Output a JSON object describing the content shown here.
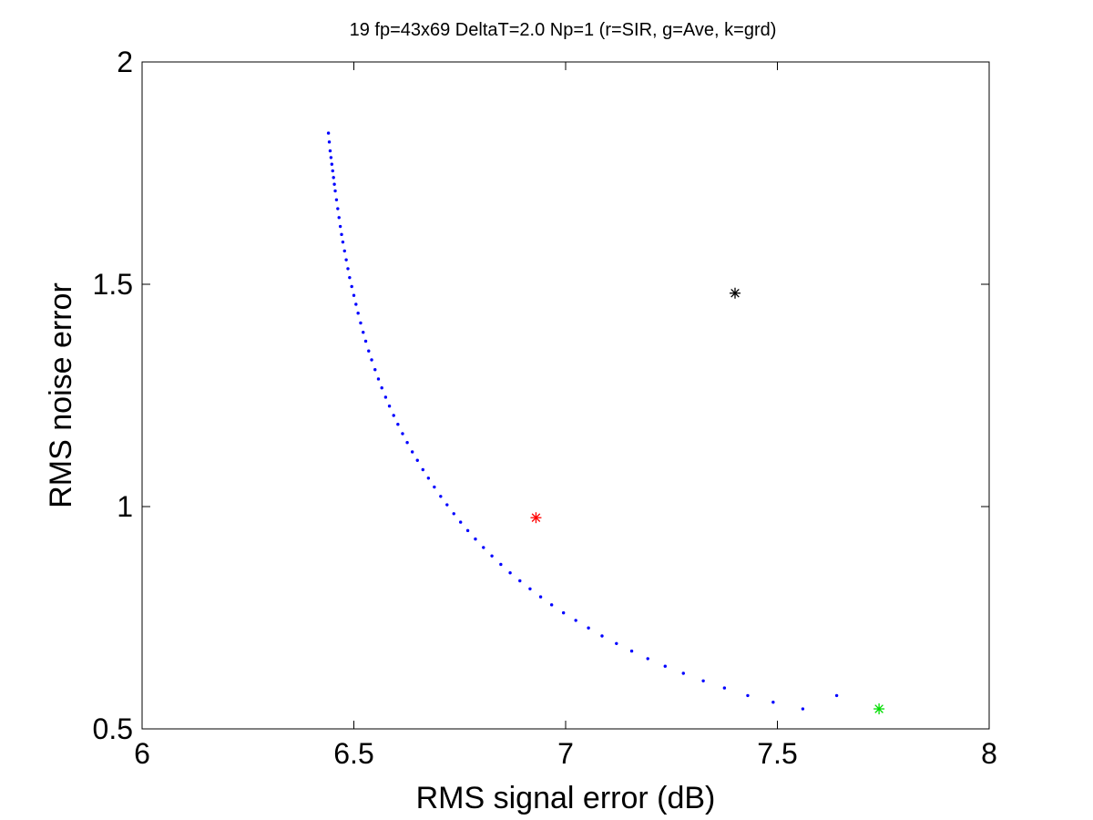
{
  "chart_data": {
    "type": "scatter",
    "title": "19 fp=43x69 DeltaT=2.0 Np=1 (r=SIR, g=Ave, k=grd)",
    "xlabel": "RMS signal error (dB)",
    "ylabel": "RMS noise error",
    "xlim": [
      6,
      8
    ],
    "ylim": [
      0.5,
      2
    ],
    "xticks": [
      "6",
      "6.5",
      "7",
      "7.5",
      "8"
    ],
    "yticks": [
      "0.5",
      "1",
      "1.5",
      "2"
    ],
    "grid": false,
    "legend": "none",
    "curve": {
      "color": "#0000ff",
      "marker": "dot",
      "x": [
        6.44,
        6.442,
        6.444,
        6.446,
        6.448,
        6.45,
        6.452,
        6.454,
        6.456,
        6.459,
        6.462,
        6.465,
        6.468,
        6.471,
        6.474,
        6.478,
        6.482,
        6.486,
        6.49,
        6.495,
        6.5,
        6.505,
        6.51,
        6.516,
        6.522,
        6.528,
        6.535,
        6.542,
        6.55,
        6.558,
        6.566,
        6.575,
        6.584,
        6.594,
        6.604,
        6.615,
        6.626,
        6.638,
        6.65,
        6.663,
        6.676,
        6.69,
        6.705,
        6.72,
        6.736,
        6.752,
        6.769,
        6.787,
        6.806,
        6.826,
        6.847,
        6.869,
        6.892,
        6.916,
        6.941,
        6.967,
        6.995,
        7.024,
        7.054,
        7.086,
        7.12,
        7.156,
        7.194,
        7.235,
        7.278,
        7.325,
        7.375,
        7.43,
        7.49,
        7.56,
        7.64
      ],
      "y": [
        1.84,
        1.82,
        1.8,
        1.785,
        1.77,
        1.755,
        1.74,
        1.725,
        1.71,
        1.69,
        1.67,
        1.65,
        1.63,
        1.612,
        1.595,
        1.575,
        1.555,
        1.535,
        1.515,
        1.495,
        1.475,
        1.455,
        1.435,
        1.413,
        1.392,
        1.372,
        1.35,
        1.33,
        1.308,
        1.287,
        1.267,
        1.246,
        1.226,
        1.205,
        1.185,
        1.164,
        1.144,
        1.123,
        1.104,
        1.083,
        1.064,
        1.044,
        1.023,
        1.004,
        0.984,
        0.965,
        0.946,
        0.927,
        0.908,
        0.889,
        0.87,
        0.851,
        0.833,
        0.815,
        0.797,
        0.779,
        0.761,
        0.744,
        0.727,
        0.709,
        0.692,
        0.675,
        0.658,
        0.641,
        0.625,
        0.608,
        0.592,
        0.575,
        0.56,
        0.545,
        0.575
      ]
    },
    "markers": [
      {
        "name": "SIR",
        "x": 6.93,
        "y": 0.975,
        "color": "#ff0000",
        "symbol": "asterisk"
      },
      {
        "name": "Ave",
        "x": 7.74,
        "y": 0.545,
        "color": "#00dd00",
        "symbol": "asterisk"
      },
      {
        "name": "grd",
        "x": 7.4,
        "y": 1.48,
        "color": "#000000",
        "symbol": "asterisk"
      }
    ]
  }
}
